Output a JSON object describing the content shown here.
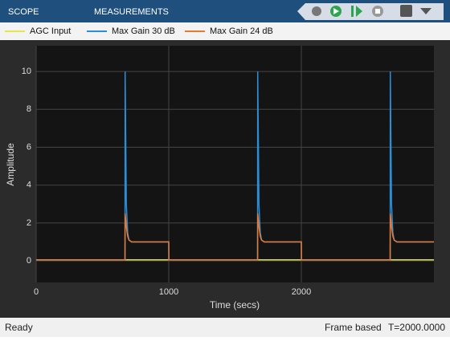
{
  "ui": {
    "tabs": [
      "SCOPE",
      "MEASUREMENTS"
    ],
    "status": {
      "left": "Ready",
      "frame": "Frame based",
      "time": "T=2000.0000"
    }
  },
  "chart_data": {
    "type": "line",
    "xlabel": "Time (secs)",
    "ylabel": "Amplitude",
    "x": [
      0,
      670,
      671,
      680,
      690,
      700,
      720,
      1000,
      1001,
      1670,
      1671,
      1680,
      1690,
      1700,
      1720,
      2000,
      2001,
      2670,
      2671,
      2680,
      2690,
      2700,
      2720,
      3000
    ],
    "series": [
      {
        "name": "AGC Input",
        "color": "#e6e64c",
        "values": [
          0.05,
          0.05,
          0.05,
          0.05,
          0.05,
          0.05,
          0.05,
          0.05,
          0.05,
          0.05,
          0.05,
          0.05,
          0.05,
          0.05,
          0.05,
          0.05,
          0.05,
          0.05,
          0.05,
          0.05,
          0.05,
          0.05,
          0.05,
          0.05
        ]
      },
      {
        "name": "Max Gain 30 dB",
        "color": "#2a8fd8",
        "values": [
          0.05,
          0.05,
          10,
          3,
          1.5,
          1.1,
          1,
          1,
          0.05,
          0.05,
          10,
          3,
          1.5,
          1.1,
          1,
          1,
          0.05,
          0.05,
          10,
          3,
          1.5,
          1.1,
          1,
          1
        ]
      },
      {
        "name": "Max Gain 24 dB",
        "color": "#e57a36",
        "values": [
          0.05,
          0.05,
          2.5,
          1.8,
          1.3,
          1.1,
          1,
          1,
          0.05,
          0.05,
          2.5,
          1.8,
          1.3,
          1.1,
          1,
          1,
          0.05,
          0.05,
          2.5,
          1.8,
          1.3,
          1.1,
          1,
          1
        ]
      }
    ],
    "xlim": [
      0,
      3000
    ],
    "xticks": [
      0,
      1000,
      2000
    ],
    "ylim": [
      -1.14,
      11.36
    ],
    "yticks": [
      0,
      2,
      4,
      6,
      8,
      10
    ],
    "grid": true
  }
}
